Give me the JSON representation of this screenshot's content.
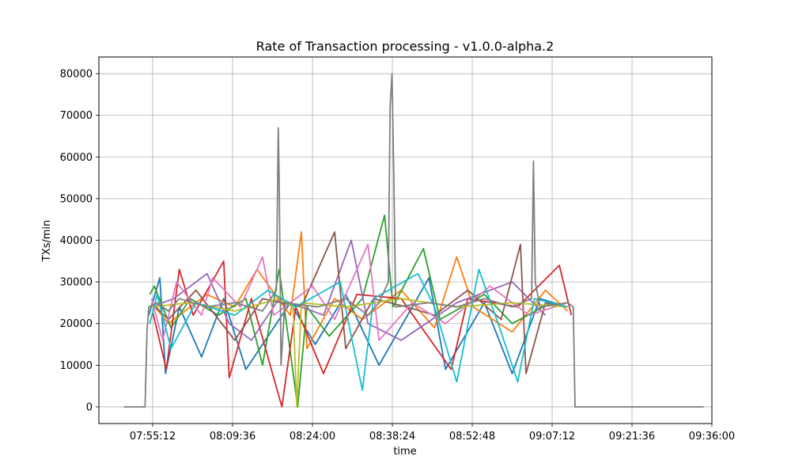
{
  "chart_data": {
    "type": "line",
    "title": "Rate of Transaction processing  -  v1.0.0-alpha.2",
    "xlabel": "time",
    "ylabel": "TXs/min",
    "grid": true,
    "legend": "none",
    "xlim": [
      "07:45:30",
      "09:36:00"
    ],
    "ylim": [
      -4000,
      84000
    ],
    "x_ticks": [
      "07:55:12",
      "08:09:36",
      "08:24:00",
      "08:38:24",
      "08:52:48",
      "09:07:12",
      "09:21:36",
      "09:36:00"
    ],
    "y_ticks": [
      0,
      10000,
      20000,
      30000,
      40000,
      50000,
      60000,
      70000,
      80000
    ],
    "palette": [
      "#1f77b4",
      "#ff7f0e",
      "#2ca02c",
      "#d62728",
      "#9467bd",
      "#8c564b",
      "#e377c2",
      "#7f7f7f",
      "#bcbd22",
      "#17becf"
    ],
    "series": [
      {
        "color": "#7f7f7f",
        "points": [
          [
            "07:50:00",
            0
          ],
          [
            "07:53:50",
            0
          ],
          [
            "07:54:10",
            18000
          ],
          [
            "07:54:30",
            24000
          ],
          [
            "07:56:00",
            25000
          ],
          [
            "07:58:00",
            23000
          ],
          [
            "08:00:00",
            26000
          ],
          [
            "08:05:00",
            24000
          ],
          [
            "08:10:00",
            25000
          ],
          [
            "08:15:00",
            23000
          ],
          [
            "08:17:30",
            28000
          ],
          [
            "08:17:50",
            67000
          ],
          [
            "08:18:00",
            55000
          ],
          [
            "08:18:20",
            10000
          ],
          [
            "08:19:00",
            25000
          ],
          [
            "08:25:00",
            24000
          ],
          [
            "08:30:00",
            26000
          ],
          [
            "08:34:00",
            22000
          ],
          [
            "08:36:00",
            25000
          ],
          [
            "08:37:40",
            30000
          ],
          [
            "08:38:00",
            72000
          ],
          [
            "08:38:20",
            80000
          ],
          [
            "08:38:40",
            55000
          ],
          [
            "08:39:00",
            24000
          ],
          [
            "08:45:00",
            25000
          ],
          [
            "08:50:00",
            24000
          ],
          [
            "08:55:00",
            26000
          ],
          [
            "09:00:00",
            24000
          ],
          [
            "09:03:30",
            26000
          ],
          [
            "09:03:50",
            59000
          ],
          [
            "09:04:10",
            30000
          ],
          [
            "09:05:00",
            24000
          ],
          [
            "09:10:00",
            25000
          ],
          [
            "09:11:00",
            24000
          ],
          [
            "09:11:20",
            0
          ],
          [
            "09:34:30",
            0
          ]
        ]
      },
      {
        "color": "#1f77b4",
        "points": [
          [
            "07:54:30",
            22000
          ],
          [
            "07:56:30",
            31000
          ],
          [
            "07:57:30",
            8000
          ],
          [
            "08:00:00",
            24000
          ],
          [
            "08:04:00",
            12000
          ],
          [
            "08:08:00",
            26000
          ],
          [
            "08:12:00",
            9000
          ],
          [
            "08:20:00",
            25000
          ],
          [
            "08:24:30",
            15000
          ],
          [
            "08:30:00",
            27000
          ],
          [
            "08:36:00",
            10000
          ],
          [
            "08:42:00",
            24000
          ],
          [
            "08:45:00",
            31000
          ],
          [
            "08:48:00",
            9000
          ],
          [
            "08:55:00",
            25000
          ],
          [
            "09:00:00",
            8000
          ],
          [
            "09:05:00",
            26000
          ],
          [
            "09:10:00",
            24000
          ]
        ]
      },
      {
        "color": "#ff7f0e",
        "points": [
          [
            "07:55:00",
            25000
          ],
          [
            "07:58:00",
            20000
          ],
          [
            "08:05:00",
            27000
          ],
          [
            "08:10:00",
            24000
          ],
          [
            "08:14:00",
            33000
          ],
          [
            "08:20:00",
            22000
          ],
          [
            "08:22:00",
            42000
          ],
          [
            "08:23:00",
            14000
          ],
          [
            "08:28:00",
            26000
          ],
          [
            "08:33:00",
            21000
          ],
          [
            "08:40:00",
            28000
          ],
          [
            "08:46:00",
            19000
          ],
          [
            "08:50:00",
            36000
          ],
          [
            "08:53:00",
            24000
          ],
          [
            "09:00:00",
            18000
          ],
          [
            "09:06:00",
            28000
          ],
          [
            "09:10:00",
            23000
          ]
        ]
      },
      {
        "color": "#2ca02c",
        "points": [
          [
            "07:54:40",
            27000
          ],
          [
            "07:55:30",
            29000
          ],
          [
            "07:58:30",
            19000
          ],
          [
            "08:02:00",
            26000
          ],
          [
            "08:07:00",
            22000
          ],
          [
            "08:12:00",
            26000
          ],
          [
            "08:15:00",
            10000
          ],
          [
            "08:18:00",
            33000
          ],
          [
            "08:21:20",
            0
          ],
          [
            "08:23:00",
            24000
          ],
          [
            "08:27:00",
            17000
          ],
          [
            "08:33:00",
            26000
          ],
          [
            "08:37:00",
            46000
          ],
          [
            "08:38:30",
            24000
          ],
          [
            "08:44:00",
            38000
          ],
          [
            "08:47:00",
            21000
          ],
          [
            "08:55:00",
            27000
          ],
          [
            "09:00:00",
            20000
          ],
          [
            "09:07:00",
            25000
          ]
        ]
      },
      {
        "color": "#d62728",
        "points": [
          [
            "07:55:10",
            23000
          ],
          [
            "07:57:40",
            9000
          ],
          [
            "08:00:00",
            33000
          ],
          [
            "08:02:30",
            22000
          ],
          [
            "08:08:00",
            35000
          ],
          [
            "08:09:00",
            7000
          ],
          [
            "08:13:00",
            26000
          ],
          [
            "08:18:30",
            0
          ],
          [
            "08:21:00",
            24000
          ],
          [
            "08:26:00",
            8000
          ],
          [
            "08:32:00",
            27000
          ],
          [
            "08:40:00",
            26000
          ],
          [
            "08:49:00",
            9000
          ],
          [
            "08:52:00",
            26000
          ],
          [
            "09:01:00",
            24000
          ],
          [
            "09:08:30",
            34000
          ],
          [
            "09:10:40",
            22000
          ]
        ]
      },
      {
        "color": "#9467bd",
        "points": [
          [
            "07:55:00",
            24000
          ],
          [
            "07:59:00",
            26000
          ],
          [
            "08:05:00",
            32000
          ],
          [
            "08:09:00",
            20000
          ],
          [
            "08:13:00",
            16000
          ],
          [
            "08:18:00",
            26000
          ],
          [
            "08:26:00",
            22000
          ],
          [
            "08:31:00",
            40000
          ],
          [
            "08:34:00",
            20000
          ],
          [
            "08:40:00",
            16000
          ],
          [
            "08:50:00",
            25000
          ],
          [
            "09:00:00",
            30000
          ],
          [
            "09:06:00",
            22000
          ]
        ]
      },
      {
        "color": "#8c564b",
        "points": [
          [
            "07:55:00",
            25000
          ],
          [
            "07:58:00",
            21000
          ],
          [
            "08:03:00",
            28000
          ],
          [
            "08:10:00",
            16000
          ],
          [
            "08:15:00",
            26000
          ],
          [
            "08:22:00",
            24000
          ],
          [
            "08:28:00",
            42000
          ],
          [
            "08:30:00",
            14000
          ],
          [
            "08:35:00",
            26000
          ],
          [
            "08:41:00",
            24000
          ],
          [
            "08:46:00",
            22000
          ],
          [
            "08:52:00",
            28000
          ],
          [
            "08:58:00",
            21000
          ],
          [
            "09:01:30",
            39000
          ],
          [
            "09:02:30",
            8000
          ],
          [
            "09:06:00",
            25000
          ],
          [
            "09:10:00",
            24000
          ]
        ]
      },
      {
        "color": "#e377c2",
        "points": [
          [
            "07:55:00",
            26000
          ],
          [
            "07:57:00",
            16000
          ],
          [
            "07:59:30",
            30000
          ],
          [
            "08:04:00",
            22000
          ],
          [
            "08:06:00",
            31000
          ],
          [
            "08:11:00",
            24000
          ],
          [
            "08:15:00",
            36000
          ],
          [
            "08:17:00",
            22000
          ],
          [
            "08:24:00",
            29000
          ],
          [
            "08:28:00",
            21000
          ],
          [
            "08:34:00",
            39000
          ],
          [
            "08:36:00",
            16000
          ],
          [
            "08:42:00",
            25000
          ],
          [
            "08:48:00",
            20000
          ],
          [
            "08:56:00",
            29000
          ],
          [
            "09:03:00",
            22000
          ],
          [
            "09:10:00",
            25000
          ]
        ]
      },
      {
        "color": "#bcbd22",
        "points": [
          [
            "07:55:00",
            24000
          ],
          [
            "08:02:00",
            25000
          ],
          [
            "08:10:00",
            23000
          ],
          [
            "08:18:00",
            26000
          ],
          [
            "08:20:30",
            24000
          ],
          [
            "08:21:10",
            0
          ],
          [
            "08:22:00",
            25000
          ],
          [
            "08:30:00",
            24000
          ],
          [
            "08:40:00",
            26000
          ],
          [
            "08:50:00",
            24000
          ],
          [
            "09:00:00",
            25000
          ],
          [
            "09:10:00",
            24000
          ]
        ]
      },
      {
        "color": "#17becf",
        "points": [
          [
            "07:54:40",
            20000
          ],
          [
            "07:56:00",
            27000
          ],
          [
            "07:58:30",
            14000
          ],
          [
            "08:03:00",
            25000
          ],
          [
            "08:10:00",
            22000
          ],
          [
            "08:16:00",
            28000
          ],
          [
            "08:21:00",
            24000
          ],
          [
            "08:29:00",
            30000
          ],
          [
            "08:33:00",
            4000
          ],
          [
            "08:35:00",
            26000
          ],
          [
            "08:43:00",
            32000
          ],
          [
            "08:46:00",
            24000
          ],
          [
            "08:50:00",
            6000
          ],
          [
            "08:54:00",
            33000
          ],
          [
            "08:58:00",
            18000
          ],
          [
            "09:01:00",
            6000
          ],
          [
            "09:04:00",
            26000
          ],
          [
            "09:10:00",
            24000
          ]
        ]
      }
    ]
  }
}
